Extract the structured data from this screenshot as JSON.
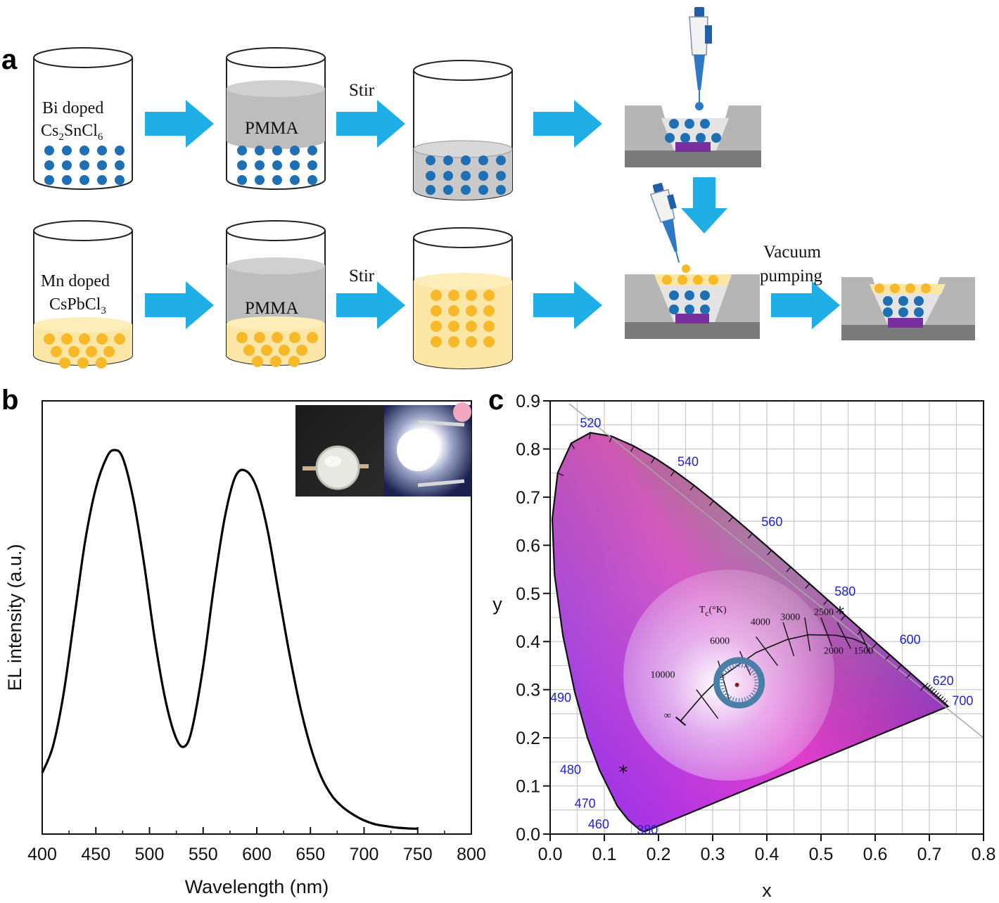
{
  "panels": {
    "a": {
      "letter": "a",
      "beaker_labels": {
        "bi_line1": "Bi doped",
        "bi_line2_main": "Cs",
        "bi_line2_sub1": "2",
        "bi_line2_mid": "SnCl",
        "bi_line2_sub2": "6",
        "mn_line1": "Mn doped",
        "mn_line2_main": "CsPbCl",
        "mn_line2_sub": "3",
        "pmma_top": "PMMA",
        "pmma_bottom": "PMMA"
      },
      "step_labels": {
        "stir_top": "Stir",
        "stir_bottom": "Stir",
        "vacuum_line1": "Vacuum",
        "vacuum_line2": "pumping"
      },
      "colors": {
        "arrow": "#1faee6",
        "blue_dot": "#1f6fb5",
        "yellow_dot": "#f7b92a",
        "yellow_fill": "#fbe6a6",
        "pmma_gray": "#c6c6c6",
        "chip": "#7a2fa0",
        "substrate": "#bdbdbd"
      }
    },
    "b": {
      "letter": "b",
      "colors": {
        "line": "#000000"
      }
    },
    "c": {
      "letter": "c",
      "wavelength_labels": [
        "520",
        "540",
        "560",
        "580",
        "600",
        "620",
        "700",
        "490",
        "480",
        "470",
        "460",
        "380"
      ],
      "cct_title_main": "T",
      "cct_title_sub": "c",
      "cct_title_rest": "(°K)",
      "cct_labels": [
        "10000",
        "6000",
        "4000",
        "3000",
        "2500",
        "2000",
        "1500",
        "∞"
      ],
      "colors": {
        "ring": "#4a7fa8",
        "point": "#8b1a1a"
      }
    }
  },
  "chart_data": [
    {
      "type": "line",
      "panel": "b",
      "xlabel": "Wavelength (nm)",
      "ylabel": "EL intensity (a.u.)",
      "xlim": [
        400,
        800
      ],
      "x_ticks": [
        "400",
        "450",
        "500",
        "550",
        "600",
        "650",
        "700",
        "750",
        "800"
      ],
      "ylim": [
        0,
        1
      ],
      "y_ticks_shown": false,
      "series": [
        {
          "x": [
            400,
            410,
            420,
            430,
            440,
            450,
            460,
            467,
            475,
            485,
            495,
            505,
            515,
            525,
            533,
            540,
            550,
            560,
            570,
            580,
            590,
            600,
            610,
            620,
            630,
            640,
            650,
            660,
            670,
            680,
            690,
            700,
            710,
            720,
            730,
            740,
            750
          ],
          "values": [
            0.15,
            0.22,
            0.36,
            0.56,
            0.76,
            0.9,
            0.98,
            1.0,
            0.98,
            0.87,
            0.7,
            0.5,
            0.34,
            0.24,
            0.22,
            0.27,
            0.43,
            0.64,
            0.82,
            0.93,
            0.945,
            0.9,
            0.79,
            0.63,
            0.47,
            0.33,
            0.22,
            0.14,
            0.09,
            0.06,
            0.04,
            0.025,
            0.015,
            0.01,
            0.006,
            0.004,
            0.003
          ]
        }
      ]
    },
    {
      "type": "scatter",
      "panel": "c",
      "xlabel": "x",
      "ylabel": "y",
      "xlim": [
        0.0,
        0.8
      ],
      "ylim": [
        0.0,
        0.9
      ],
      "x_ticks": [
        "0.0",
        "0.1",
        "0.2",
        "0.3",
        "0.4",
        "0.5",
        "0.6",
        "0.7",
        "0.8"
      ],
      "y_ticks": [
        "0.0",
        "0.1",
        "0.2",
        "0.3",
        "0.4",
        "0.5",
        "0.6",
        "0.7",
        "0.8",
        "0.9"
      ],
      "grid": true,
      "spectral_locus": [
        [
          0.1741,
          0.005
        ],
        [
          0.1655,
          0.0086
        ],
        [
          0.144,
          0.0297
        ],
        [
          0.1241,
          0.0578
        ],
        [
          0.0913,
          0.1327
        ],
        [
          0.0687,
          0.2007
        ],
        [
          0.0454,
          0.295
        ],
        [
          0.0235,
          0.4127
        ],
        [
          0.0082,
          0.5384
        ],
        [
          0.0039,
          0.6548
        ],
        [
          0.0139,
          0.7502
        ],
        [
          0.0389,
          0.812
        ],
        [
          0.0743,
          0.8338
        ],
        [
          0.1142,
          0.8262
        ],
        [
          0.1547,
          0.8059
        ],
        [
          0.1929,
          0.7816
        ],
        [
          0.2296,
          0.7543
        ],
        [
          0.2658,
          0.7243
        ],
        [
          0.3016,
          0.6923
        ],
        [
          0.3373,
          0.6589
        ],
        [
          0.3731,
          0.6245
        ],
        [
          0.4087,
          0.5896
        ],
        [
          0.4441,
          0.5547
        ],
        [
          0.4788,
          0.5202
        ],
        [
          0.5125,
          0.4866
        ],
        [
          0.5448,
          0.4544
        ],
        [
          0.5752,
          0.4242
        ],
        [
          0.6029,
          0.3965
        ],
        [
          0.627,
          0.3725
        ],
        [
          0.6482,
          0.3514
        ],
        [
          0.6658,
          0.334
        ],
        [
          0.6915,
          0.3083
        ],
        [
          0.7347,
          0.2653
        ]
      ],
      "planckian_locus": [
        [
          0.24,
          0.234
        ],
        [
          0.265,
          0.267
        ],
        [
          0.281,
          0.288
        ],
        [
          0.313,
          0.324
        ],
        [
          0.38,
          0.377
        ],
        [
          0.437,
          0.404
        ],
        [
          0.477,
          0.414
        ],
        [
          0.527,
          0.413
        ],
        [
          0.559,
          0.406
        ],
        [
          0.585,
          0.393
        ]
      ],
      "points": [
        {
          "name": "white-point",
          "x": 0.345,
          "y": 0.31
        },
        {
          "name": "star-1",
          "x": 0.135,
          "y": 0.13
        },
        {
          "name": "star-2",
          "x": 0.535,
          "y": 0.46
        }
      ]
    }
  ]
}
